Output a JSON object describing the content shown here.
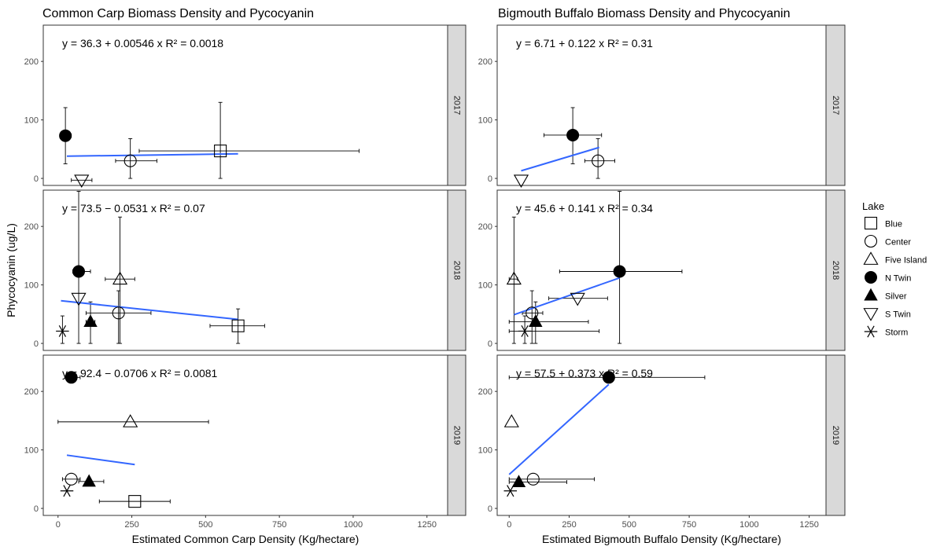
{
  "legend": {
    "title": "Lake",
    "items": [
      "Blue",
      "Center",
      "Five Island",
      "N Twin",
      "Silver",
      "S Twin",
      "Storm"
    ],
    "shapes": {
      "Blue": "square-open",
      "Center": "circle-open",
      "Five Island": "triangle-up-open",
      "N Twin": "circle-filled",
      "Silver": "triangle-up-filled",
      "S Twin": "triangle-down-open",
      "Storm": "asterisk"
    }
  },
  "colors": {
    "fit_line": "#3366ff",
    "strip_fill": "#d9d9d9",
    "points": "#000000"
  },
  "shared": {
    "ylabel": "Phycocyanin (ug/L)"
  },
  "chart_data": [
    {
      "type": "scatter",
      "title": "Common Carp Biomass Density and Pycocyanin",
      "xlabel": "Estimated Common Carp Density (Kg/hectare)",
      "ylabel": "Phycocyanin (ug/L)",
      "xlim": [
        -50,
        1320
      ],
      "ylim": [
        -12,
        262
      ],
      "xticks": [
        0,
        250,
        500,
        750,
        1000,
        1250
      ],
      "yticks": [
        0,
        100,
        200
      ],
      "grid": false,
      "panels": [
        {
          "strip": "2017",
          "equation": "y = 36.3 + 0.00546 x",
          "r2": "R² = 0.0018",
          "fit": {
            "x": [
              30,
              610
            ],
            "y": [
              38,
              42
            ]
          },
          "points": [
            {
              "lake": "N Twin",
              "x": 25,
              "y": 73,
              "xerr": [
                15,
                45
              ],
              "yerr": [
                25,
                121
              ]
            },
            {
              "lake": "S Twin",
              "x": 80,
              "y": -3,
              "xerr": [
                45,
                115
              ],
              "yerr": null
            },
            {
              "lake": "Center",
              "x": 245,
              "y": 30,
              "xerr": [
                195,
                335
              ],
              "yerr": [
                0,
                68
              ]
            },
            {
              "lake": "Blue",
              "x": 550,
              "y": 47,
              "xerr": [
                275,
                1020
              ],
              "yerr": [
                0,
                130
              ]
            }
          ]
        },
        {
          "strip": "2018",
          "equation": "y = 73.5 − 0.0531 x",
          "r2": "R² = 0.07",
          "fit": {
            "x": [
              10,
              610
            ],
            "y": [
              73,
              41
            ]
          },
          "points": [
            {
              "lake": "Storm",
              "x": 15,
              "y": 21,
              "xerr": null,
              "yerr": [
                0,
                47
              ]
            },
            {
              "lake": "S Twin",
              "x": 70,
              "y": 77,
              "xerr": null,
              "yerr": [
                0,
                260
              ]
            },
            {
              "lake": "N Twin",
              "x": 70,
              "y": 123,
              "xerr": [
                50,
                110
              ],
              "yerr": null
            },
            {
              "lake": "Silver",
              "x": 110,
              "y": 37,
              "xerr": [
                95,
                125
              ],
              "yerr": [
                0,
                71
              ]
            },
            {
              "lake": "Five Island",
              "x": 210,
              "y": 110,
              "xerr": [
                160,
                260
              ],
              "yerr": [
                0,
                216
              ]
            },
            {
              "lake": "Center",
              "x": 205,
              "y": 52,
              "xerr": [
                95,
                315
              ],
              "yerr": [
                0,
                90
              ]
            },
            {
              "lake": "Blue",
              "x": 610,
              "y": 30,
              "xerr": [
                515,
                700
              ],
              "yerr": [
                0,
                59
              ]
            }
          ]
        },
        {
          "strip": "2019",
          "equation": "y = 92.4 − 0.0706 x",
          "r2": "R² = 0.0081",
          "fit": {
            "x": [
              30,
              260
            ],
            "y": [
              91,
              75
            ]
          },
          "points": [
            {
              "lake": "N Twin",
              "x": 45,
              "y": 224,
              "xerr": [
                25,
                75
              ],
              "yerr": null
            },
            {
              "lake": "Five Island",
              "x": 245,
              "y": 148,
              "xerr": [
                0,
                510
              ],
              "yerr": null
            },
            {
              "lake": "Center",
              "x": 45,
              "y": 50,
              "xerr": [
                15,
                75
              ],
              "yerr": null
            },
            {
              "lake": "Silver",
              "x": 105,
              "y": 46,
              "xerr": [
                70,
                155
              ],
              "yerr": null
            },
            {
              "lake": "Storm",
              "x": 30,
              "y": 30,
              "xerr": null,
              "yerr": null
            },
            {
              "lake": "Blue",
              "x": 260,
              "y": 12,
              "xerr": [
                140,
                380
              ],
              "yerr": null
            }
          ]
        }
      ]
    },
    {
      "type": "scatter",
      "title": "Bigmouth Buffalo Biomass Density and Phycocyanin",
      "xlabel": "Estimated Bigmouth Buffalo Density (Kg/hectare)",
      "ylabel": "",
      "xlim": [
        -50,
        1320
      ],
      "ylim": [
        -12,
        262
      ],
      "xticks": [
        0,
        250,
        500,
        750,
        1000,
        1250
      ],
      "yticks": [
        0,
        100,
        200
      ],
      "grid": false,
      "panels": [
        {
          "strip": "2017",
          "equation": "y = 6.71 + 0.122 x",
          "r2": "R² = 0.31",
          "fit": {
            "x": [
              50,
              375
            ],
            "y": [
              13,
              53
            ]
          },
          "points": [
            {
              "lake": "N Twin",
              "x": 265,
              "y": 74,
              "xerr": [
                145,
                385
              ],
              "yerr": [
                25,
                121
              ]
            },
            {
              "lake": "Center",
              "x": 370,
              "y": 30,
              "xerr": [
                315,
                440
              ],
              "yerr": [
                0,
                68
              ]
            },
            {
              "lake": "S Twin",
              "x": 50,
              "y": -3,
              "xerr": null,
              "yerr": null
            }
          ]
        },
        {
          "strip": "2018",
          "equation": "y = 45.6 + 0.141 x",
          "r2": "R² = 0.34",
          "fit": {
            "x": [
              20,
              460
            ],
            "y": [
              49,
              112
            ]
          },
          "points": [
            {
              "lake": "Five Island",
              "x": 20,
              "y": 110,
              "xerr": [
                0,
                35
              ],
              "yerr": [
                0,
                216
              ]
            },
            {
              "lake": "N Twin",
              "x": 460,
              "y": 123,
              "xerr": [
                210,
                720
              ],
              "yerr": [
                0,
                260
              ]
            },
            {
              "lake": "S Twin",
              "x": 285,
              "y": 77,
              "xerr": [
                165,
                410
              ],
              "yerr": null
            },
            {
              "lake": "Center",
              "x": 95,
              "y": 52,
              "xerr": [
                55,
                140
              ],
              "yerr": [
                0,
                90
              ]
            },
            {
              "lake": "Silver",
              "x": 110,
              "y": 37,
              "xerr": [
                0,
                330
              ],
              "yerr": [
                0,
                71
              ]
            },
            {
              "lake": "Storm",
              "x": 65,
              "y": 21,
              "xerr": [
                0,
                375
              ],
              "yerr": [
                0,
                47
              ]
            }
          ]
        },
        {
          "strip": "2019",
          "equation": "y = 57.5 + 0.373 x",
          "r2": "R² = 0.59",
          "fit": {
            "x": [
              0,
              415
            ],
            "y": [
              58,
              212
            ]
          },
          "points": [
            {
              "lake": "N Twin",
              "x": 415,
              "y": 224,
              "xerr": [
                0,
                815
              ],
              "yerr": null
            },
            {
              "lake": "Five Island",
              "x": 10,
              "y": 148,
              "xerr": null,
              "yerr": null
            },
            {
              "lake": "Center",
              "x": 100,
              "y": 50,
              "xerr": [
                0,
                355
              ],
              "yerr": null
            },
            {
              "lake": "Silver",
              "x": 40,
              "y": 45,
              "xerr": [
                0,
                240
              ],
              "yerr": null
            },
            {
              "lake": "Storm",
              "x": 5,
              "y": 30,
              "xerr": null,
              "yerr": null
            }
          ]
        }
      ]
    }
  ]
}
